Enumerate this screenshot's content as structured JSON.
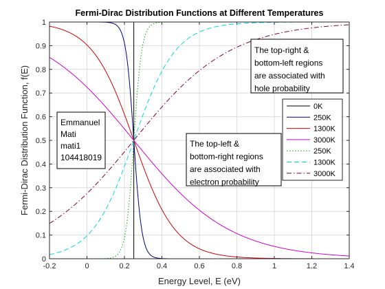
{
  "chart_data": {
    "type": "line",
    "title": "Fermi-Dirac Distribution Functions at Different Temperatures",
    "xlabel": "Energy Level, E (eV)",
    "ylabel": "Fermi-Dirac Distribution Function, f(E)",
    "xlim": [
      -0.2,
      1.4
    ],
    "ylim": [
      0,
      1
    ],
    "xticks": [
      "-0.2",
      "0",
      "0.2",
      "0.4",
      "0.6",
      "0.8",
      "1",
      "1.2",
      "1.4"
    ],
    "yticks": [
      "0",
      "0.1",
      "0.2",
      "0.3",
      "0.4",
      "0.5",
      "0.6",
      "0.7",
      "0.8",
      "0.9",
      "1"
    ],
    "grid": true,
    "legend_position": "right",
    "fermi_level_eV": 0.25,
    "series": [
      {
        "name": "0K",
        "kind": "electron",
        "temperature_K": 0,
        "color": "#000000",
        "dash": "solid"
      },
      {
        "name": "250K",
        "kind": "electron",
        "temperature_K": 250,
        "color": "#00007f",
        "dash": "solid"
      },
      {
        "name": "1300K",
        "kind": "electron",
        "temperature_K": 1300,
        "color": "#cc0000",
        "dash": "solid"
      },
      {
        "name": "3000K",
        "kind": "electron",
        "temperature_K": 3000,
        "color": "#cc00cc",
        "dash": "solid"
      },
      {
        "name": "250K",
        "kind": "hole",
        "temperature_K": 250,
        "color": "#00b300",
        "dash": "dotted"
      },
      {
        "name": "1300K",
        "kind": "hole",
        "temperature_K": 1300,
        "color": "#00d9e6",
        "dash": "dashed"
      },
      {
        "name": "3000K",
        "kind": "hole",
        "temperature_K": 3000,
        "color": "#7f0033",
        "dash": "dashdot"
      }
    ],
    "annotations": {
      "name_box": [
        "Emmanuel",
        "Mati",
        "mati1",
        "104418019"
      ],
      "hole_box": [
        "The top-right &",
        "bottom-left regions",
        "are associated with",
        "hole probability"
      ],
      "electron_box": [
        "The top-left &",
        "bottom-right regions",
        "are associated with",
        "electron probability"
      ]
    }
  }
}
